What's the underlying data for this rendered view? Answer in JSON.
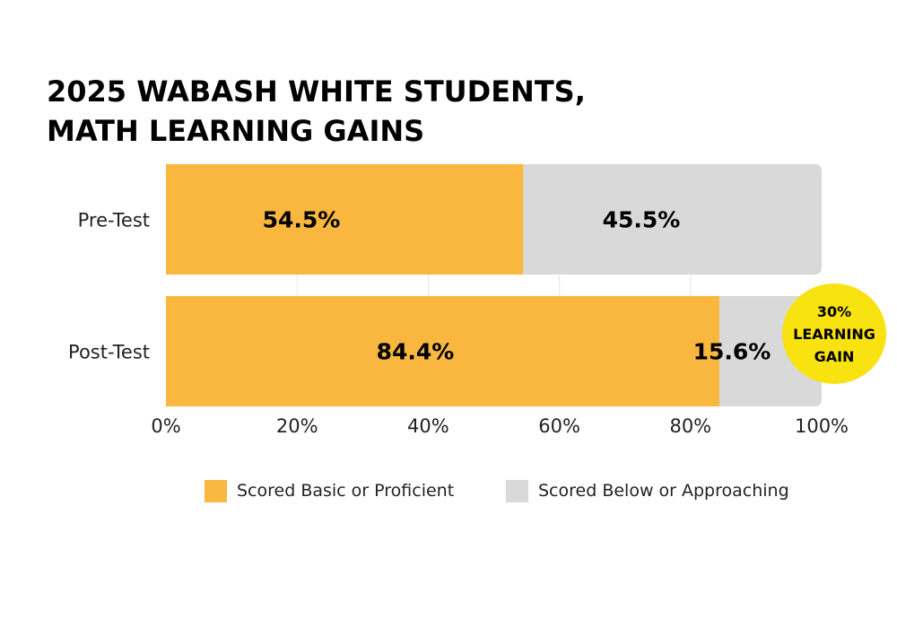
{
  "title_lines": [
    "2025 WABASH WHITE STUDENTS,",
    "MATH LEARNING GAINS"
  ],
  "colors": {
    "basic_or_proficient": "#F9B73F",
    "below_or_approaching": "#D9D9D9",
    "badge": "#F8E210",
    "gridline": "#E6E6E6",
    "text": "#000000"
  },
  "chart_data": {
    "type": "bar",
    "orientation": "horizontal",
    "stacked": true,
    "title": "2025 WABASH WHITE STUDENTS, MATH LEARNING GAINS",
    "categories": [
      "Pre-Test",
      "Post-Test"
    ],
    "series": [
      {
        "name": "Scored Basic or Proficient",
        "values": [
          54.5,
          84.4
        ],
        "labels": [
          "54.5%",
          "84.4%"
        ]
      },
      {
        "name": "Scored Below or Approaching",
        "values": [
          45.5,
          15.6
        ],
        "labels": [
          "45.5%",
          "15.6%"
        ]
      }
    ],
    "xlim": [
      0,
      100
    ],
    "xticks": [
      "0%",
      "20%",
      "40%",
      "60%",
      "80%",
      "100%"
    ],
    "grid": true,
    "legend_position": "bottom"
  },
  "legend": {
    "items": [
      "Scored Basic or Proficient",
      "Scored Below or Approaching"
    ]
  },
  "badge": {
    "lines": [
      "30%",
      "LEARNING",
      "GAIN"
    ]
  }
}
